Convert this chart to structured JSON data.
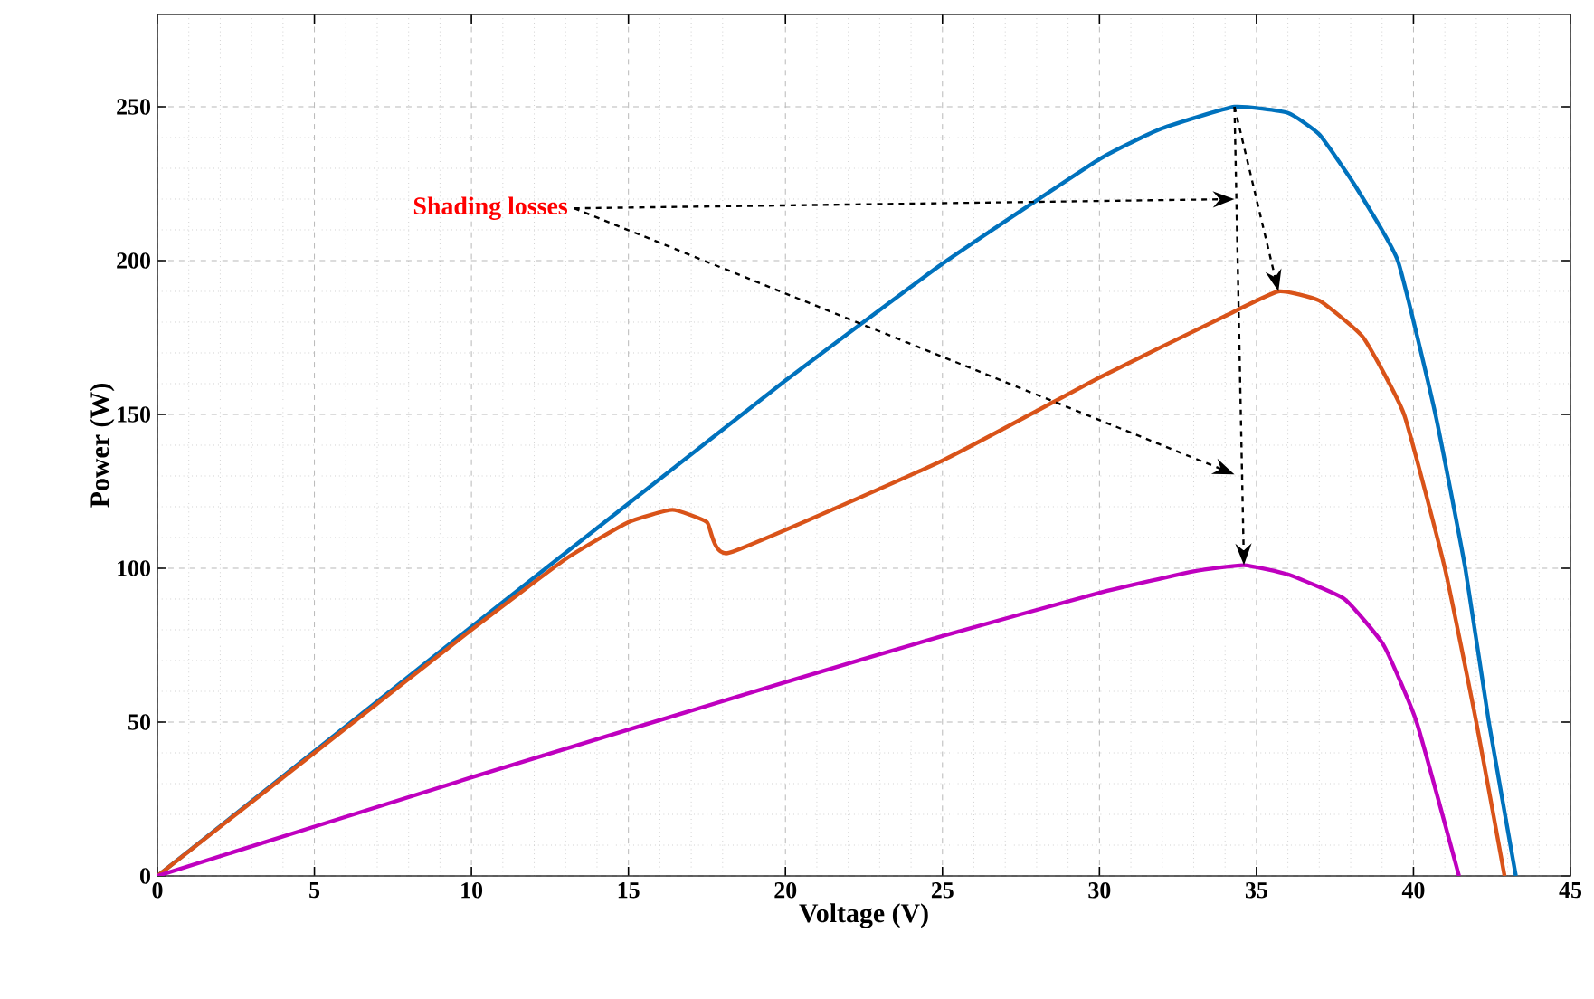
{
  "chart_data": {
    "type": "line",
    "xlabel": "Voltage (V)",
    "ylabel": "Power (W)",
    "xlim": [
      0,
      45
    ],
    "ylim": [
      0,
      280
    ],
    "xticks": [
      0,
      5,
      10,
      15,
      20,
      25,
      30,
      35,
      40,
      45
    ],
    "yticks": [
      0,
      50,
      100,
      150,
      200,
      250
    ],
    "grid": true,
    "annotations": [
      "Shading losses"
    ],
    "series": [
      {
        "color": "#0072bd",
        "x": [
          0,
          5,
          10,
          15,
          20,
          25,
          30,
          32,
          34.3,
          36,
          37,
          38.1,
          39.5,
          40.7,
          41.65,
          42.4,
          43.26
        ],
        "values": [
          0,
          40.5,
          81,
          121,
          161,
          199,
          233,
          243,
          250,
          248,
          241,
          225,
          200,
          150,
          100,
          50,
          0
        ]
      },
      {
        "color": "#d95319",
        "x": [
          0,
          5,
          10,
          13,
          15,
          16.4,
          17.5,
          18.2,
          25,
          30,
          34,
          35.7,
          37,
          38.4,
          39.7,
          41,
          42,
          42.9
        ],
        "values": [
          0,
          40,
          80,
          103,
          115,
          119,
          115,
          105,
          135,
          162,
          182,
          190,
          187,
          175,
          150,
          100,
          50,
          0
        ]
      },
      {
        "color": "#bf00bf",
        "x": [
          0,
          10,
          20,
          25,
          30,
          33,
          34.6,
          36,
          37.8,
          39.05,
          40.1,
          41.45
        ],
        "values": [
          0,
          32,
          63,
          78,
          92,
          99,
          101,
          98,
          90,
          75,
          50,
          0
        ]
      }
    ]
  }
}
